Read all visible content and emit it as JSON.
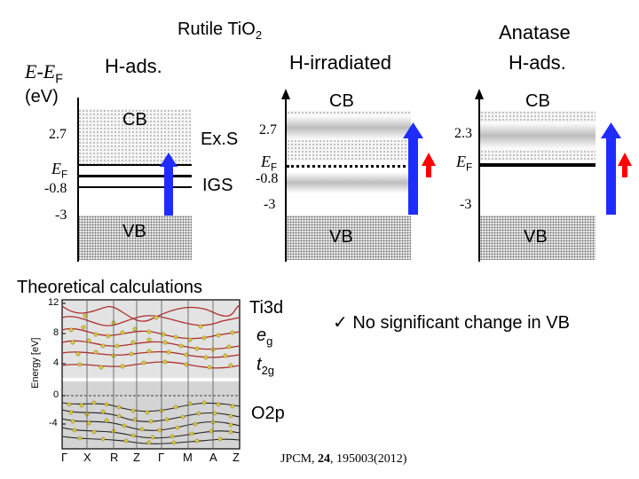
{
  "titles": {
    "rutile": "Rutile TiO",
    "rutile_sub": "2",
    "anatase_line1": "Anatase",
    "anatase_line2": "H-ads.",
    "h_ads": "H-ads.",
    "h_irradiated": "H-irradiated"
  },
  "axis": {
    "ylabel_e": "E",
    "ylabel_minus": "-",
    "ylabel_ef": "E",
    "ylabel_ef_sub": "F",
    "ylabel_unit": "(eV)"
  },
  "panel1": {
    "tick_top": "2.7",
    "tick_ef": "E",
    "tick_ef_sub": "F",
    "tick_mid": "-0.8",
    "tick_bottom": "-3",
    "cb": "CB",
    "vb": "VB",
    "exs": "Ex.S",
    "igs": "IGS"
  },
  "panel2": {
    "tick_top": "2.7",
    "tick_ef": "E",
    "tick_ef_sub": "F",
    "tick_mid": "-0.8",
    "tick_bottom": "-3",
    "cb": "CB",
    "vb": "VB"
  },
  "panel3": {
    "tick_top": "2.3",
    "tick_ef": "E",
    "tick_ef_sub": "F",
    "tick_bottom": "-3",
    "cb": "CB",
    "vb": "VB"
  },
  "theory": {
    "title": "Theoretical calculations",
    "ylabel": "Energy [eV]",
    "yticks": [
      "12",
      "8",
      "4",
      "0",
      "-4"
    ],
    "xticks": [
      "Γ",
      "X",
      "R",
      "Z",
      "Γ",
      "M",
      "A",
      "Z"
    ],
    "ti3d": "Ti3d",
    "eg_e": "e",
    "eg_sub": "g",
    "t2g_t": "t",
    "t2g_sub": "2g",
    "o2p": "O2p"
  },
  "note": {
    "check": "✓",
    "text": "No significant change in VB"
  },
  "reference": {
    "journal": "JPCM, ",
    "volume": "24",
    "pages": ", 195003(2012)"
  },
  "colors": {
    "arrow_blue": "#1f2cff",
    "arrow_red": "#ff0000",
    "band_gray": "#bdbdbd",
    "curve_red": "#b03030",
    "curve_olive": "#8a7a20",
    "dot_yellow": "#d8c840"
  }
}
